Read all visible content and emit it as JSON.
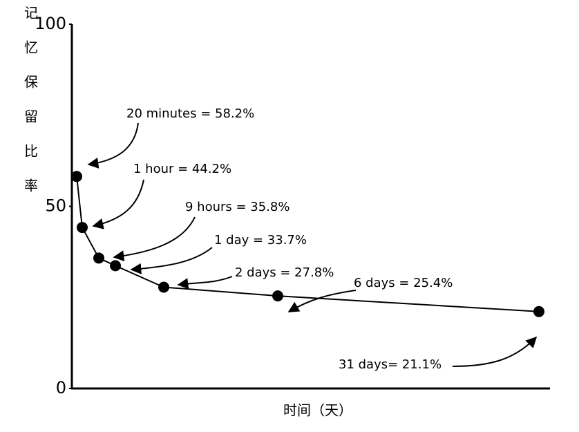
{
  "chart_data": {
    "type": "line",
    "ylabel": "记忆保留比率",
    "xlabel": "时间（天）",
    "values": [
      58.2,
      44.2,
      35.8,
      33.7,
      27.8,
      25.4,
      21.1
    ],
    "value_labels": [
      "20 minutes = 58.2%",
      "1 hour = 44.2%",
      "9 hours = 35.8%",
      "1 day = 33.7%",
      "2 days = 27.8%",
      "6 days = 25.4%",
      "31 days= 21.1%"
    ],
    "color": "#000000",
    "ylim": [
      0,
      100
    ],
    "yticks": [
      0,
      50,
      100
    ]
  }
}
